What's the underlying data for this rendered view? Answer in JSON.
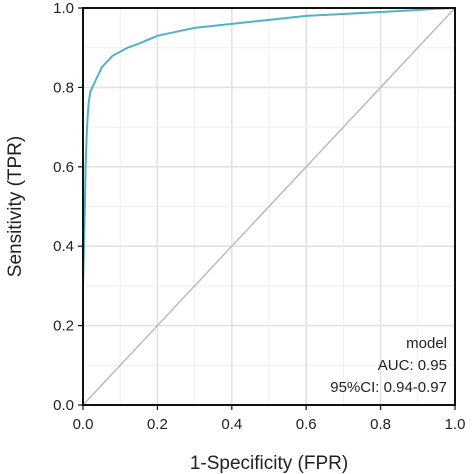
{
  "chart_data": {
    "type": "line",
    "title": "",
    "xlabel": "1-Specificity (FPR)",
    "ylabel": "Sensitivity (TPR)",
    "xlim": [
      0,
      1
    ],
    "ylim": [
      0,
      1
    ],
    "x_ticks": [
      "0.0",
      "0.2",
      "0.4",
      "0.6",
      "0.8",
      "1.0"
    ],
    "y_ticks": [
      "0.0",
      "0.2",
      "0.4",
      "0.6",
      "0.8",
      "1.0"
    ],
    "grid": true,
    "series": [
      {
        "role": "roc-curve",
        "color": "#4fb3c8",
        "x": [
          0.0,
          0.0,
          0.005,
          0.007,
          0.01,
          0.012,
          0.015,
          0.02,
          0.025,
          0.03,
          0.035,
          0.04,
          0.05,
          0.06,
          0.07,
          0.08,
          0.1,
          0.12,
          0.15,
          0.2,
          0.25,
          0.3,
          0.4,
          0.5,
          0.6,
          0.7,
          0.8,
          0.9,
          0.95,
          1.0
        ],
        "y": [
          0.0,
          0.3,
          0.5,
          0.6,
          0.68,
          0.72,
          0.76,
          0.79,
          0.8,
          0.81,
          0.82,
          0.83,
          0.85,
          0.86,
          0.87,
          0.88,
          0.89,
          0.9,
          0.91,
          0.93,
          0.94,
          0.95,
          0.96,
          0.97,
          0.98,
          0.985,
          0.99,
          0.995,
          0.998,
          1.0
        ]
      },
      {
        "role": "reference-diagonal",
        "color": "#bbbbbb",
        "x": [
          0,
          1
        ],
        "y": [
          0,
          1
        ]
      }
    ],
    "annotations": {
      "model": "model",
      "auc": "AUC: 0.95",
      "ci": "95%CI: 0.94-0.97"
    },
    "annotation_placement": "bottom-right"
  }
}
